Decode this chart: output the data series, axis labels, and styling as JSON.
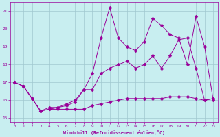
{
  "xlabel": "Windchill (Refroidissement éolien,°C)",
  "bg_color": "#c8eef0",
  "grid_color": "#a0c8d0",
  "line_color": "#990099",
  "xlim": [
    -0.5,
    23.5
  ],
  "ylim": [
    14.8,
    21.5
  ],
  "yticks": [
    15,
    16,
    17,
    18,
    19,
    20,
    21
  ],
  "xticks": [
    0,
    1,
    2,
    3,
    4,
    5,
    6,
    7,
    8,
    9,
    10,
    11,
    12,
    13,
    14,
    15,
    16,
    17,
    18,
    19,
    20,
    21,
    22,
    23
  ],
  "series1_x": [
    0,
    1,
    2,
    3,
    4,
    5,
    6,
    7,
    8,
    9,
    10,
    11,
    12,
    13,
    14,
    15,
    16,
    17,
    18,
    19,
    20,
    21,
    22,
    23
  ],
  "series1_y": [
    17.0,
    16.8,
    16.1,
    15.4,
    15.5,
    15.5,
    15.5,
    15.5,
    15.5,
    15.7,
    15.8,
    15.9,
    16.0,
    16.1,
    16.1,
    16.1,
    16.1,
    16.1,
    16.2,
    16.2,
    16.2,
    16.1,
    16.0,
    16.1
  ],
  "series2_x": [
    0,
    1,
    2,
    3,
    4,
    5,
    6,
    7,
    8,
    9,
    10,
    11,
    12,
    13,
    14,
    15,
    16,
    17,
    18,
    19,
    20,
    21,
    22,
    23
  ],
  "series2_y": [
    17.0,
    16.8,
    16.1,
    15.4,
    15.6,
    15.6,
    15.7,
    15.9,
    16.6,
    16.6,
    17.5,
    17.8,
    18.0,
    18.2,
    17.8,
    18.0,
    18.5,
    17.8,
    18.5,
    19.4,
    19.5,
    17.8,
    16.0,
    16.1
  ],
  "series3_x": [
    0,
    1,
    2,
    3,
    4,
    5,
    6,
    7,
    8,
    9,
    10,
    11,
    12,
    13,
    14,
    15,
    16,
    17,
    18,
    19,
    20,
    21,
    22,
    23
  ],
  "series3_y": [
    17.0,
    16.8,
    16.1,
    15.4,
    15.5,
    15.6,
    15.8,
    16.0,
    16.6,
    17.5,
    19.5,
    21.2,
    19.5,
    19.0,
    18.8,
    19.3,
    20.6,
    20.2,
    19.7,
    19.5,
    18.0,
    20.7,
    19.0,
    16.0
  ]
}
